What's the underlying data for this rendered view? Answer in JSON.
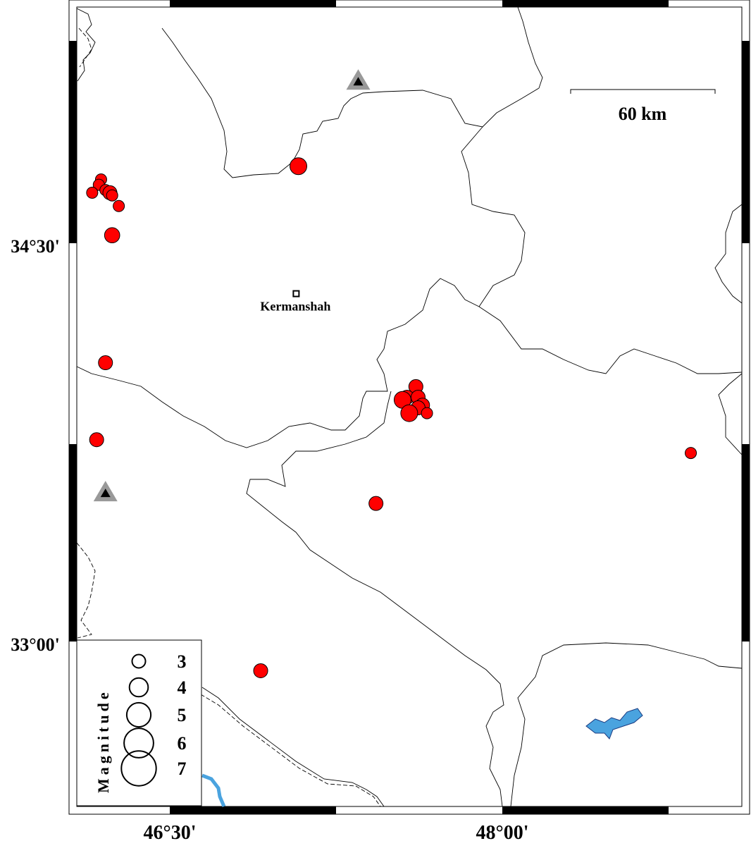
{
  "map": {
    "axes": {
      "lon_ticks": [
        {
          "value": 46.5,
          "label": "46°30'"
        },
        {
          "value": 48.0,
          "label": "48°00'"
        }
      ],
      "lat_ticks": [
        {
          "value": 34.5,
          "label": "34°30'"
        },
        {
          "value": 33.0,
          "label": "33°00'"
        }
      ]
    },
    "scale_bar": {
      "label": "60 km"
    },
    "city": {
      "name": "Kermanshah",
      "lon": 47.07,
      "lat": 34.31
    },
    "colors": {
      "event": "#ff0000",
      "water": "#4aa3df",
      "station": "#999999",
      "border": "#000000"
    },
    "stations": [
      {
        "lon": 47.35,
        "lat": 35.11
      },
      {
        "lon": 46.21,
        "lat": 33.56
      }
    ],
    "events": [
      {
        "lon": 47.08,
        "lat": 34.79,
        "mag": 3.5
      },
      {
        "lon": 46.19,
        "lat": 34.74,
        "mag": 2.5
      },
      {
        "lon": 46.18,
        "lat": 34.72,
        "mag": 2.5
      },
      {
        "lon": 46.15,
        "lat": 34.69,
        "mag": 2.5
      },
      {
        "lon": 46.21,
        "lat": 34.7,
        "mag": 2.5
      },
      {
        "lon": 46.23,
        "lat": 34.69,
        "mag": 3.0
      },
      {
        "lon": 46.24,
        "lat": 34.68,
        "mag": 2.5
      },
      {
        "lon": 46.27,
        "lat": 34.64,
        "mag": 2.5
      },
      {
        "lon": 46.24,
        "lat": 34.53,
        "mag": 3.2
      },
      {
        "lon": 46.21,
        "lat": 34.05,
        "mag": 3.0
      },
      {
        "lon": 46.17,
        "lat": 33.76,
        "mag": 3.0
      },
      {
        "lon": 46.91,
        "lat": 32.89,
        "mag": 3.0
      },
      {
        "lon": 47.43,
        "lat": 33.52,
        "mag": 3.0
      },
      {
        "lon": 48.85,
        "lat": 33.71,
        "mag": 2.5
      },
      {
        "lon": 47.61,
        "lat": 33.96,
        "mag": 3.0
      },
      {
        "lon": 47.57,
        "lat": 33.92,
        "mag": 3.0
      },
      {
        "lon": 47.55,
        "lat": 33.91,
        "mag": 3.5
      },
      {
        "lon": 47.62,
        "lat": 33.92,
        "mag": 3.0
      },
      {
        "lon": 47.64,
        "lat": 33.89,
        "mag": 3.0
      },
      {
        "lon": 47.62,
        "lat": 33.88,
        "mag": 3.0
      },
      {
        "lon": 47.58,
        "lat": 33.86,
        "mag": 3.5
      },
      {
        "lon": 47.66,
        "lat": 33.86,
        "mag": 2.5
      }
    ],
    "legend": {
      "title": "Magnitude",
      "items": [
        {
          "mag": 3,
          "label": "3"
        },
        {
          "mag": 4,
          "label": "4"
        },
        {
          "mag": 5,
          "label": "5"
        },
        {
          "mag": 6,
          "label": "6"
        },
        {
          "mag": 7,
          "label": "7"
        }
      ]
    }
  }
}
